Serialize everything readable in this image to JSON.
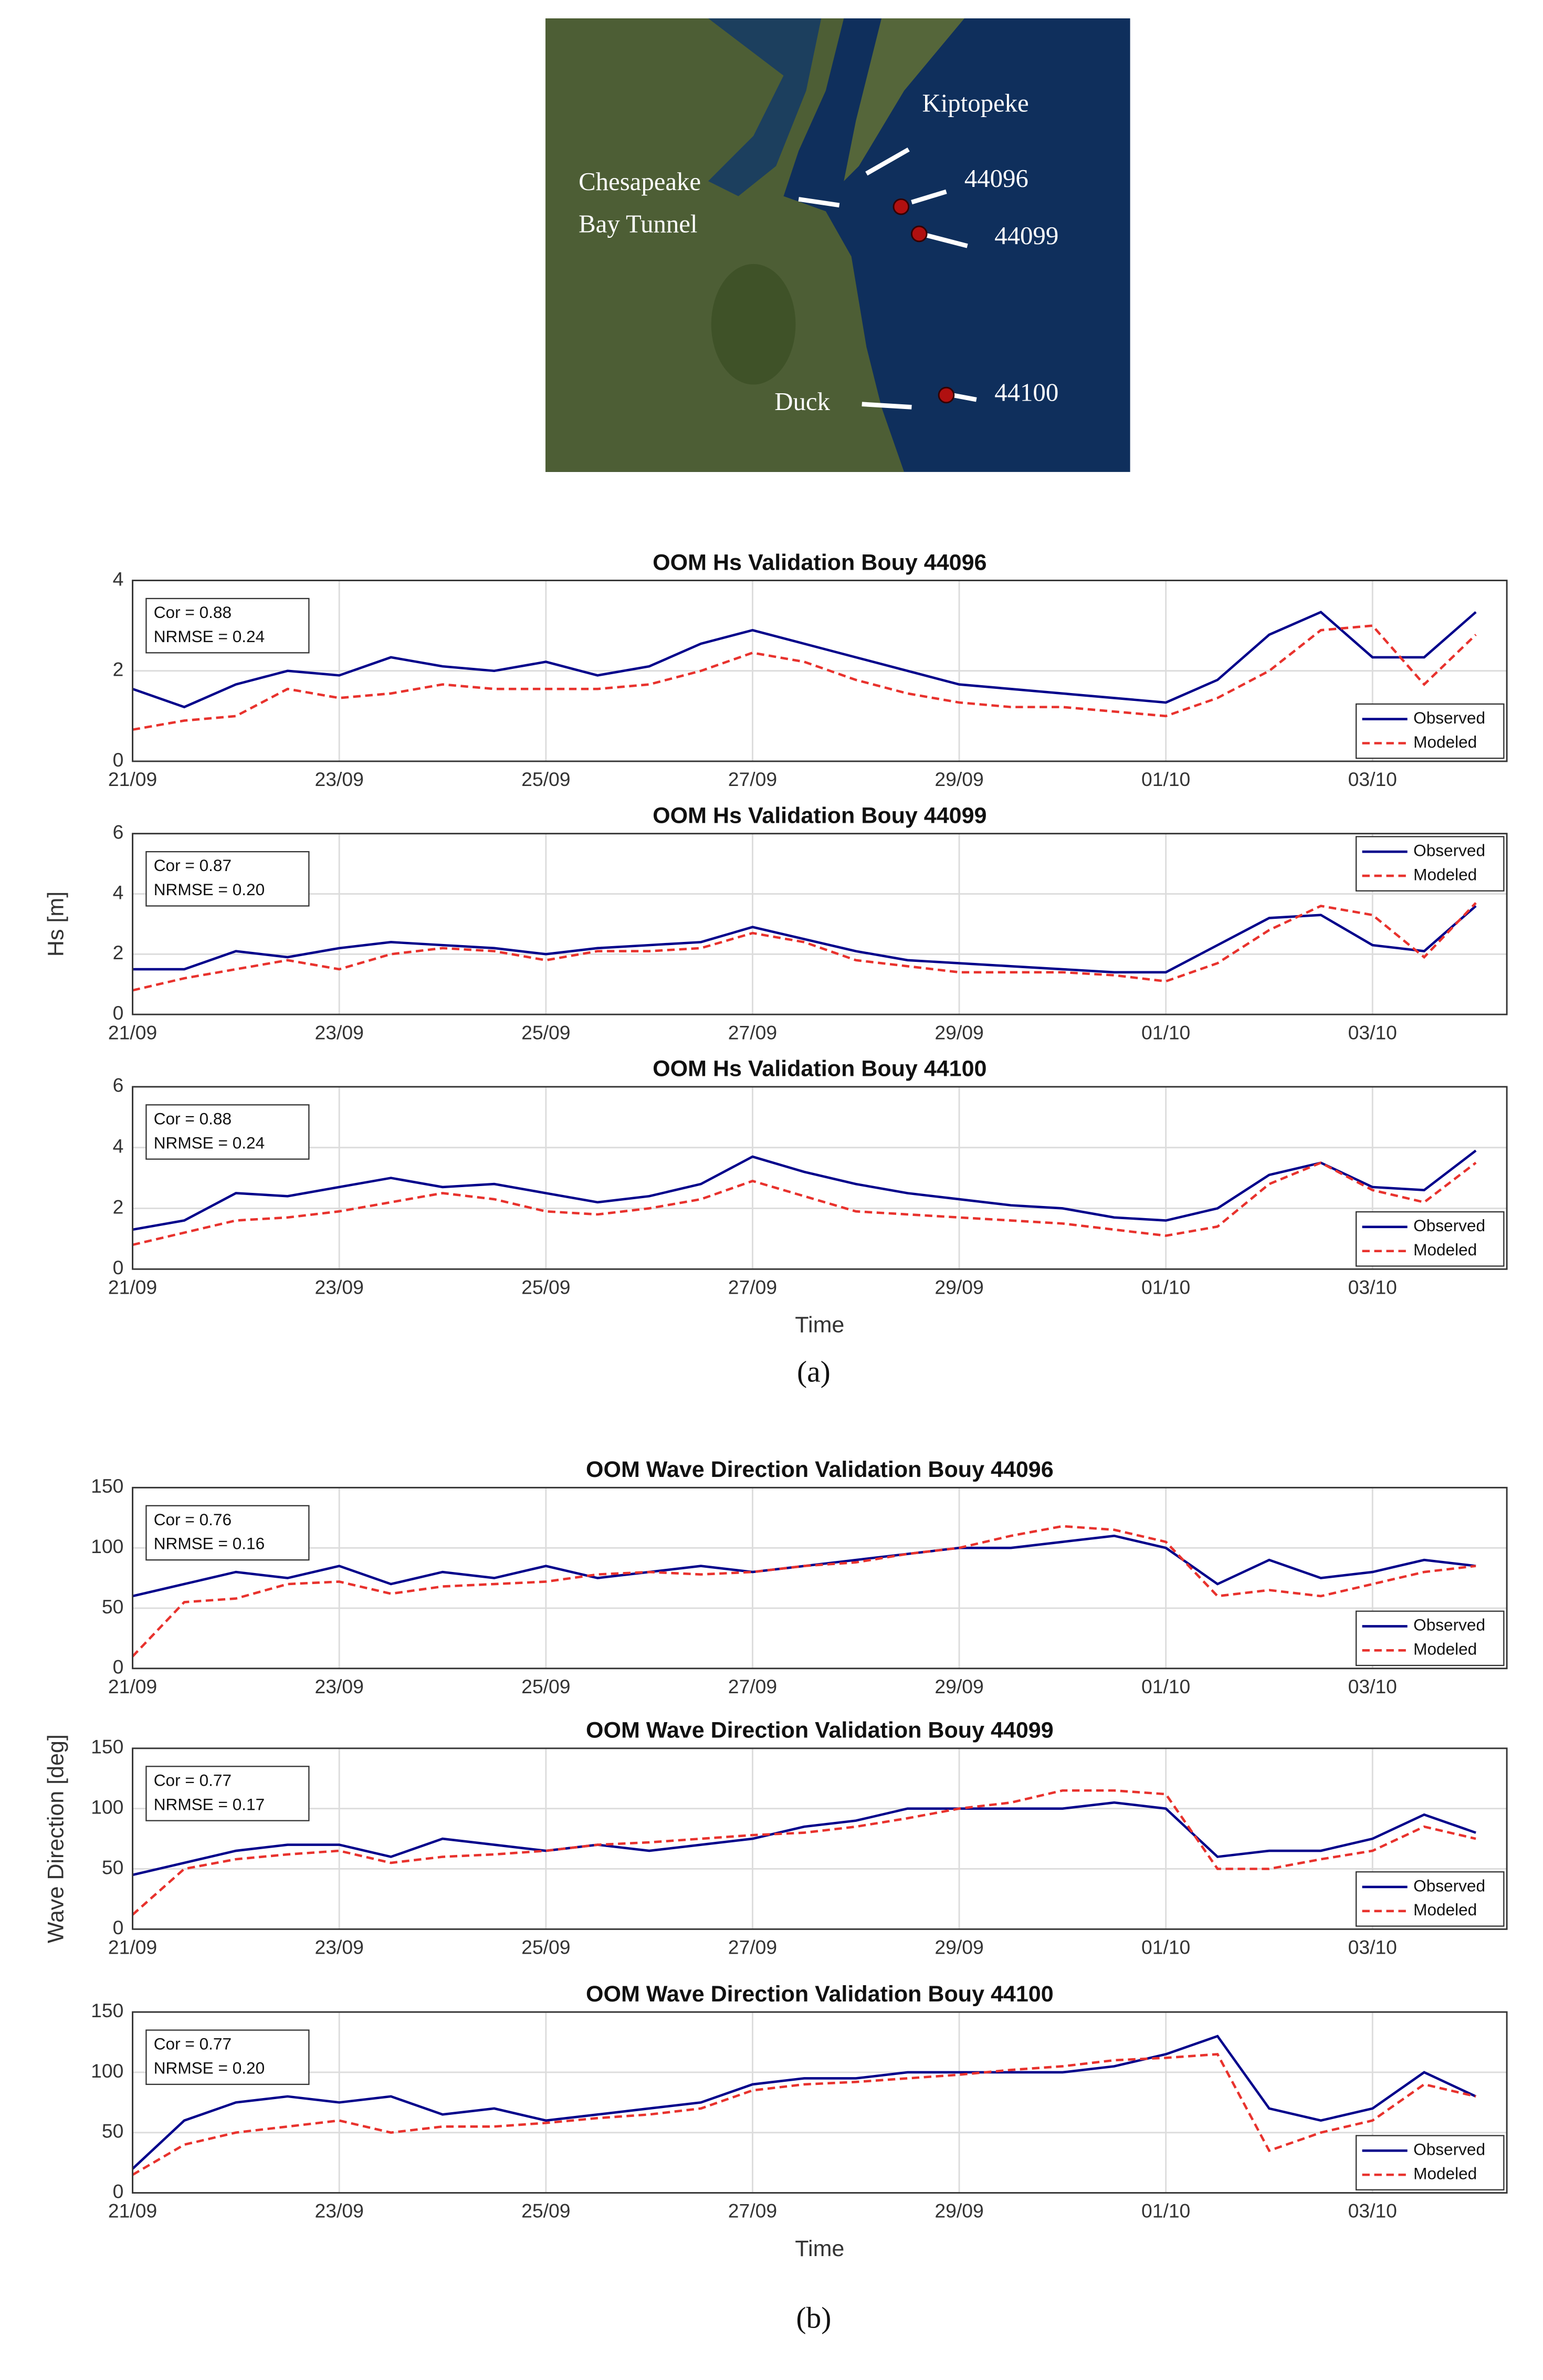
{
  "map": {
    "labels": [
      "Kiptopeke",
      "44096",
      "Chesapeake",
      "Bay Tunnel",
      "44099",
      "Duck",
      "44100"
    ]
  },
  "captions": [
    "(a)",
    "(b)"
  ],
  "chart_data": [
    {
      "type": "line",
      "title": "OOM Hs Validation Bouy 44096",
      "annotations": [
        "Cor = 0.88",
        "NRMSE = 0.24"
      ],
      "x": [
        0,
        0.5,
        1,
        1.5,
        2,
        2.5,
        3,
        3.5,
        4,
        4.5,
        5,
        5.5,
        6,
        6.5,
        7,
        7.5,
        8,
        8.5,
        9,
        9.5,
        10,
        10.5,
        11,
        11.5,
        12,
        12.5,
        13
      ],
      "series": [
        {
          "name": "Observed",
          "color": "#00008b",
          "dash": false,
          "values": [
            1.6,
            1.2,
            1.7,
            2.0,
            1.9,
            2.3,
            2.1,
            2.0,
            2.2,
            1.9,
            2.1,
            2.6,
            2.9,
            2.6,
            2.3,
            2.0,
            1.7,
            1.6,
            1.5,
            1.4,
            1.3,
            1.8,
            2.8,
            3.3,
            2.3,
            2.3,
            3.3
          ]
        },
        {
          "name": "Modeled",
          "color": "#e8322d",
          "dash": true,
          "values": [
            0.7,
            0.9,
            1.0,
            1.6,
            1.4,
            1.5,
            1.7,
            1.6,
            1.6,
            1.6,
            1.7,
            2.0,
            2.4,
            2.2,
            1.8,
            1.5,
            1.3,
            1.2,
            1.2,
            1.1,
            1.0,
            1.4,
            2.0,
            2.9,
            3.0,
            1.7,
            2.8
          ]
        }
      ],
      "xlim": [
        0,
        13.3
      ],
      "xticks": [
        {
          "value": 0,
          "label": "21/09"
        },
        {
          "value": 2,
          "label": "23/09"
        },
        {
          "value": 4,
          "label": "25/09"
        },
        {
          "value": 6,
          "label": "27/09"
        },
        {
          "value": 8,
          "label": "29/09"
        },
        {
          "value": 10,
          "label": "01/10"
        },
        {
          "value": 12,
          "label": "03/10"
        }
      ],
      "ylim": [
        0,
        4
      ],
      "yticks": [
        0,
        2,
        4
      ],
      "grid": true,
      "legend": "lower right"
    },
    {
      "type": "line",
      "title": "OOM Hs Validation Bouy 44099",
      "ylabel": "Hs [m]",
      "annotations": [
        "Cor = 0.87",
        "NRMSE = 0.20"
      ],
      "x": [
        0,
        0.5,
        1,
        1.5,
        2,
        2.5,
        3,
        3.5,
        4,
        4.5,
        5,
        5.5,
        6,
        6.5,
        7,
        7.5,
        8,
        8.5,
        9,
        9.5,
        10,
        10.5,
        11,
        11.5,
        12,
        12.5,
        13
      ],
      "series": [
        {
          "name": "Observed",
          "color": "#00008b",
          "dash": false,
          "values": [
            1.5,
            1.5,
            2.1,
            1.9,
            2.2,
            2.4,
            2.3,
            2.2,
            2.0,
            2.2,
            2.3,
            2.4,
            2.9,
            2.5,
            2.1,
            1.8,
            1.7,
            1.6,
            1.5,
            1.4,
            1.4,
            2.3,
            3.2,
            3.3,
            2.3,
            2.1,
            3.6
          ]
        },
        {
          "name": "Modeled",
          "color": "#e8322d",
          "dash": true,
          "values": [
            0.8,
            1.2,
            1.5,
            1.8,
            1.5,
            2.0,
            2.2,
            2.1,
            1.8,
            2.1,
            2.1,
            2.2,
            2.7,
            2.4,
            1.8,
            1.6,
            1.4,
            1.4,
            1.4,
            1.3,
            1.1,
            1.7,
            2.8,
            3.6,
            3.3,
            1.9,
            3.7
          ]
        }
      ],
      "xlim": [
        0,
        13.3
      ],
      "xticks": [
        {
          "value": 0,
          "label": "21/09"
        },
        {
          "value": 2,
          "label": "23/09"
        },
        {
          "value": 4,
          "label": "25/09"
        },
        {
          "value": 6,
          "label": "27/09"
        },
        {
          "value": 8,
          "label": "29/09"
        },
        {
          "value": 10,
          "label": "01/10"
        },
        {
          "value": 12,
          "label": "03/10"
        }
      ],
      "ylim": [
        0,
        6
      ],
      "yticks": [
        0,
        2,
        4,
        6
      ],
      "grid": true,
      "legend": "upper right"
    },
    {
      "type": "line",
      "title": "OOM Hs Validation Bouy 44100",
      "xlabel": "Time",
      "annotations": [
        "Cor = 0.88",
        "NRMSE = 0.24"
      ],
      "x": [
        0,
        0.5,
        1,
        1.5,
        2,
        2.5,
        3,
        3.5,
        4,
        4.5,
        5,
        5.5,
        6,
        6.5,
        7,
        7.5,
        8,
        8.5,
        9,
        9.5,
        10,
        10.5,
        11,
        11.5,
        12,
        12.5,
        13
      ],
      "series": [
        {
          "name": "Observed",
          "color": "#00008b",
          "dash": false,
          "values": [
            1.3,
            1.6,
            2.5,
            2.4,
            2.7,
            3.0,
            2.7,
            2.8,
            2.5,
            2.2,
            2.4,
            2.8,
            3.7,
            3.2,
            2.8,
            2.5,
            2.3,
            2.1,
            2.0,
            1.7,
            1.6,
            2.0,
            3.1,
            3.5,
            2.7,
            2.6,
            3.9
          ]
        },
        {
          "name": "Modeled",
          "color": "#e8322d",
          "dash": true,
          "values": [
            0.8,
            1.2,
            1.6,
            1.7,
            1.9,
            2.2,
            2.5,
            2.3,
            1.9,
            1.8,
            2.0,
            2.3,
            2.9,
            2.4,
            1.9,
            1.8,
            1.7,
            1.6,
            1.5,
            1.3,
            1.1,
            1.4,
            2.8,
            3.5,
            2.6,
            2.2,
            3.5
          ]
        }
      ],
      "xlim": [
        0,
        13.3
      ],
      "xticks": [
        {
          "value": 0,
          "label": "21/09"
        },
        {
          "value": 2,
          "label": "23/09"
        },
        {
          "value": 4,
          "label": "25/09"
        },
        {
          "value": 6,
          "label": "27/09"
        },
        {
          "value": 8,
          "label": "29/09"
        },
        {
          "value": 10,
          "label": "01/10"
        },
        {
          "value": 12,
          "label": "03/10"
        }
      ],
      "ylim": [
        0,
        6
      ],
      "yticks": [
        0,
        2,
        4,
        6
      ],
      "grid": true,
      "legend": "lower right"
    },
    {
      "type": "line",
      "title": "OOM Wave Direction Validation Bouy 44096",
      "annotations": [
        "Cor = 0.76",
        "NRMSE = 0.16"
      ],
      "x": [
        0,
        0.5,
        1,
        1.5,
        2,
        2.5,
        3,
        3.5,
        4,
        4.5,
        5,
        5.5,
        6,
        6.5,
        7,
        7.5,
        8,
        8.5,
        9,
        9.5,
        10,
        10.5,
        11,
        11.5,
        12,
        12.5,
        13
      ],
      "series": [
        {
          "name": "Observed",
          "color": "#00008b",
          "dash": false,
          "values": [
            60,
            70,
            80,
            75,
            85,
            70,
            80,
            75,
            85,
            75,
            80,
            85,
            80,
            85,
            90,
            95,
            100,
            100,
            105,
            110,
            100,
            70,
            90,
            75,
            80,
            90,
            85
          ]
        },
        {
          "name": "Modeled",
          "color": "#e8322d",
          "dash": true,
          "values": [
            10,
            55,
            58,
            70,
            72,
            62,
            68,
            70,
            72,
            78,
            80,
            78,
            80,
            85,
            88,
            95,
            100,
            110,
            118,
            115,
            105,
            60,
            65,
            60,
            70,
            80,
            85
          ]
        }
      ],
      "xlim": [
        0,
        13.3
      ],
      "xticks": [
        {
          "value": 0,
          "label": "21/09"
        },
        {
          "value": 2,
          "label": "23/09"
        },
        {
          "value": 4,
          "label": "25/09"
        },
        {
          "value": 6,
          "label": "27/09"
        },
        {
          "value": 8,
          "label": "29/09"
        },
        {
          "value": 10,
          "label": "01/10"
        },
        {
          "value": 12,
          "label": "03/10"
        }
      ],
      "ylim": [
        0,
        150
      ],
      "yticks": [
        0,
        50,
        100,
        150
      ],
      "grid": true,
      "legend": "lower right"
    },
    {
      "type": "line",
      "title": "OOM Wave Direction Validation Bouy 44099",
      "ylabel": "Wave Direction [deg]",
      "annotations": [
        "Cor = 0.77",
        "NRMSE = 0.17"
      ],
      "x": [
        0,
        0.5,
        1,
        1.5,
        2,
        2.5,
        3,
        3.5,
        4,
        4.5,
        5,
        5.5,
        6,
        6.5,
        7,
        7.5,
        8,
        8.5,
        9,
        9.5,
        10,
        10.5,
        11,
        11.5,
        12,
        12.5,
        13
      ],
      "series": [
        {
          "name": "Observed",
          "color": "#00008b",
          "dash": false,
          "values": [
            45,
            55,
            65,
            70,
            70,
            60,
            75,
            70,
            65,
            70,
            65,
            70,
            75,
            85,
            90,
            100,
            100,
            100,
            100,
            105,
            100,
            60,
            65,
            65,
            75,
            95,
            80
          ]
        },
        {
          "name": "Modeled",
          "color": "#e8322d",
          "dash": true,
          "values": [
            12,
            50,
            58,
            62,
            65,
            55,
            60,
            62,
            65,
            70,
            72,
            75,
            78,
            80,
            85,
            92,
            100,
            105,
            115,
            115,
            112,
            50,
            50,
            58,
            65,
            85,
            75
          ]
        }
      ],
      "xlim": [
        0,
        13.3
      ],
      "xticks": [
        {
          "value": 0,
          "label": "21/09"
        },
        {
          "value": 2,
          "label": "23/09"
        },
        {
          "value": 4,
          "label": "25/09"
        },
        {
          "value": 6,
          "label": "27/09"
        },
        {
          "value": 8,
          "label": "29/09"
        },
        {
          "value": 10,
          "label": "01/10"
        },
        {
          "value": 12,
          "label": "03/10"
        }
      ],
      "ylim": [
        0,
        150
      ],
      "yticks": [
        0,
        50,
        100,
        150
      ],
      "grid": true,
      "legend": "lower right"
    },
    {
      "type": "line",
      "title": "OOM Wave Direction Validation Bouy 44100",
      "xlabel": "Time",
      "annotations": [
        "Cor = 0.77",
        "NRMSE = 0.20"
      ],
      "x": [
        0,
        0.5,
        1,
        1.5,
        2,
        2.5,
        3,
        3.5,
        4,
        4.5,
        5,
        5.5,
        6,
        6.5,
        7,
        7.5,
        8,
        8.5,
        9,
        9.5,
        10,
        10.5,
        11,
        11.5,
        12,
        12.5,
        13
      ],
      "series": [
        {
          "name": "Observed",
          "color": "#00008b",
          "dash": false,
          "values": [
            20,
            60,
            75,
            80,
            75,
            80,
            65,
            70,
            60,
            65,
            70,
            75,
            90,
            95,
            95,
            100,
            100,
            100,
            100,
            105,
            115,
            130,
            70,
            60,
            70,
            100,
            80
          ]
        },
        {
          "name": "Modeled",
          "color": "#e8322d",
          "dash": true,
          "values": [
            15,
            40,
            50,
            55,
            60,
            50,
            55,
            55,
            58,
            62,
            65,
            70,
            85,
            90,
            92,
            95,
            98,
            102,
            105,
            110,
            112,
            115,
            35,
            50,
            60,
            90,
            80
          ]
        }
      ],
      "xlim": [
        0,
        13.3
      ],
      "xticks": [
        {
          "value": 0,
          "label": "21/09"
        },
        {
          "value": 2,
          "label": "23/09"
        },
        {
          "value": 4,
          "label": "25/09"
        },
        {
          "value": 6,
          "label": "27/09"
        },
        {
          "value": 8,
          "label": "29/09"
        },
        {
          "value": 10,
          "label": "01/10"
        },
        {
          "value": 12,
          "label": "03/10"
        }
      ],
      "ylim": [
        0,
        150
      ],
      "yticks": [
        0,
        50,
        100,
        150
      ],
      "grid": true,
      "legend": "lower right"
    }
  ]
}
